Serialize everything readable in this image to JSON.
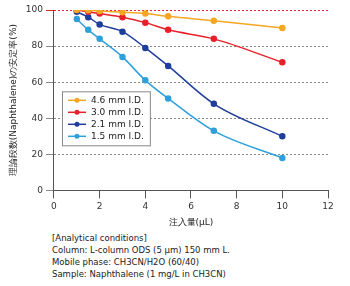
{
  "chart_data": {
    "type": "line",
    "x_label": "注入量(μL)",
    "y_label": "理論段数(Naphthalene)の安定率(%)",
    "x": [
      1,
      1.5,
      2,
      3,
      4,
      5,
      7,
      10
    ],
    "series": [
      {
        "name": "4.6 mm I.D.",
        "color": "#f5a623",
        "values": [
          100,
          99.8,
          99.5,
          98.8,
          98,
          96.5,
          94,
          90
        ]
      },
      {
        "name": "3.0 mm I.D.",
        "color": "#e8202a",
        "values": [
          100,
          99,
          98,
          96,
          93,
          89,
          84,
          71
        ]
      },
      {
        "name": "2.1 mm I.D.",
        "color": "#1f3e9c",
        "values": [
          99,
          96,
          92,
          88,
          79,
          69,
          48,
          30
        ]
      },
      {
        "name": "1.5 mm I.D.",
        "color": "#2fa0dc",
        "values": [
          95,
          89,
          84,
          74,
          61,
          51,
          33,
          18
        ]
      }
    ],
    "xlim": [
      0,
      12
    ],
    "xticks": [
      0,
      2,
      4,
      6,
      8,
      10,
      12
    ],
    "ylim": [
      0,
      100
    ],
    "yticks": [
      0,
      20,
      40,
      60,
      80,
      100
    ],
    "grid": true,
    "legend": "lower left",
    "marker": "circle",
    "annotations": [
      "[Analytical conditions]",
      "Column: L-column ODS (5 μm) 150 mm L.",
      "Mobile phase: CH3CN/H2O (60/40)",
      "Sample:  Naphthalene (1 mg/L in CH3CN)"
    ]
  }
}
